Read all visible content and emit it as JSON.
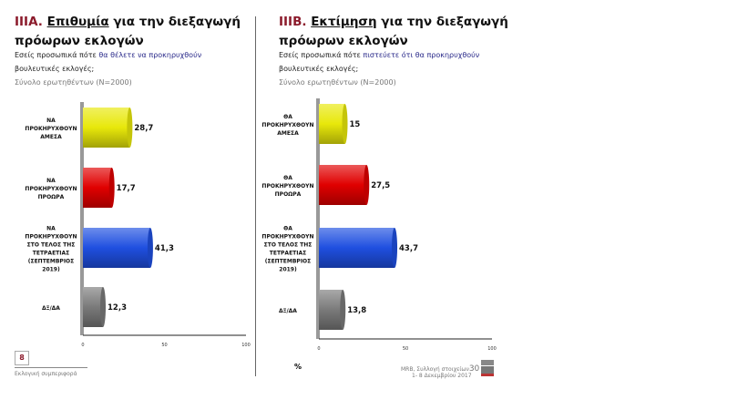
{
  "left": {
    "num": "IIIA.",
    "title_u": "Επιθυμία",
    "title_rest": " για την διεξαγωγή",
    "title_line2": "πρόωρων εκλογών",
    "q1": "Εσείς προσωπικά πότε ",
    "q_hl": "θα θέλετε",
    "q2": " να προκηρυχθούν",
    "q_line2": "βουλευτικές εκλογές;",
    "base": "Σύνολο ερωτηθέντων (N=2000)"
  },
  "right": {
    "num": "IIIB.",
    "title_u": "Εκτίμηση",
    "title_rest": " για την διεξαγωγή",
    "title_line2": "πρόωρων εκλογών",
    "q1": "Εσείς προσωπικά πότε ",
    "q_hl": "πιστεύετε ότι θα προκηρυχθούν",
    "q2": "",
    "q_line2": "βουλευτικές εκλογές;",
    "base": "Σύνολο ερωτηθέντων (N=2000)"
  },
  "footer": {
    "page": "8",
    "section": "Εκλογική συμπεριφορά",
    "source": "MRB, Συλλογή στοιχείων",
    "wave": "30",
    "dates": "1- 8 Δεκεμβρίου 2017",
    "percent": "%",
    "logo": "MRB HELLAS"
  },
  "chart_data": [
    {
      "type": "bar",
      "orientation": "horizontal",
      "xlim": [
        0,
        100
      ],
      "ticks": [
        "0",
        "50",
        "100"
      ],
      "categories": [
        "ΝΑ\nΠΡΟΚΗΡΥΧΘΟΥΝ\nΑΜΕΣΑ",
        "ΝΑ\nΠΡΟΚΗΡΥΧΘΟΥΝ\nΠΡΟΩΡΑ",
        "ΝΑ\nΠΡΟΚΗΡΥΧΘΟΥΝ\nΣΤΟ ΤΕΛΟΣ ΤΗΣ\nΤΕΤΡΑΕΤΙΑΣ\n(ΣΕΠΤΕΜΒΡΙΟΣ\n2019)",
        "ΔΞ/ΔΑ"
      ],
      "values": [
        28.7,
        17.7,
        41.3,
        12.3
      ],
      "labels": [
        "28,7",
        "17,7",
        "41,3",
        "12,3"
      ],
      "colors": [
        "#e8e80a",
        "#e00000",
        "#1f4fe0",
        "#7a7a7a"
      ]
    },
    {
      "type": "bar",
      "orientation": "horizontal",
      "xlim": [
        0,
        100
      ],
      "ticks": [
        "0",
        "50",
        "100"
      ],
      "categories": [
        "ΘΑ\nΠΡΟΚΗΡΥΧΘΟΥΝ\nΑΜΕΣΑ",
        "ΘΑ\nΠΡΟΚΗΡΥΧΘΟΥΝ\nΠΡΟΩΡΑ",
        "ΘΑ\nΠΡΟΚΗΡΥΧΘΟΥΝ\nΣΤΟ ΤΕΛΟΣ ΤΗΣ\nΤΕΤΡΑΕΤΙΑΣ\n(ΣΕΠΤΕΜΒΡΙΟΣ\n2019)",
        "ΔΞ/ΔΑ"
      ],
      "values": [
        15,
        27.5,
        43.7,
        13.8
      ],
      "labels": [
        "15",
        "27,5",
        "43,7",
        "13,8"
      ],
      "colors": [
        "#e8e80a",
        "#e00000",
        "#1f4fe0",
        "#7a7a7a"
      ]
    }
  ]
}
